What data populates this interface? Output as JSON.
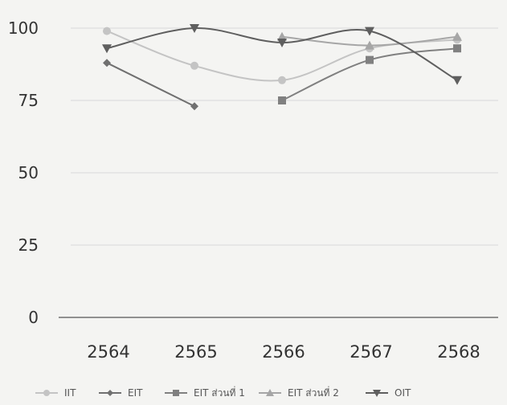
{
  "chart_data": {
    "type": "line",
    "title": "",
    "xlabel": "",
    "ylabel": "",
    "categories": [
      "2564",
      "2565",
      "2566",
      "2567",
      "2568"
    ],
    "ylim": [
      0,
      100
    ],
    "yticks": [
      0,
      25,
      50,
      75,
      100
    ],
    "grid": true,
    "legend_position": "bottom",
    "series": [
      {
        "name": "IIT",
        "marker": "circle",
        "color": "#c4c4c4",
        "values": [
          99,
          87,
          82,
          93,
          96
        ]
      },
      {
        "name": "EIT",
        "marker": "diamond",
        "color": "#707070",
        "values": [
          88,
          73,
          null,
          null,
          null
        ]
      },
      {
        "name": "EIT ส่วนที่ 1",
        "marker": "square",
        "color": "#808080",
        "values": [
          null,
          null,
          75,
          89,
          93
        ]
      },
      {
        "name": "EIT ส่วนที่ 2",
        "marker": "triangle-up",
        "color": "#a6a6a6",
        "values": [
          null,
          null,
          97,
          94,
          97
        ]
      },
      {
        "name": "OIT",
        "marker": "triangle-down",
        "color": "#5f5f5f",
        "values": [
          93,
          100,
          95,
          99,
          82
        ]
      }
    ]
  }
}
